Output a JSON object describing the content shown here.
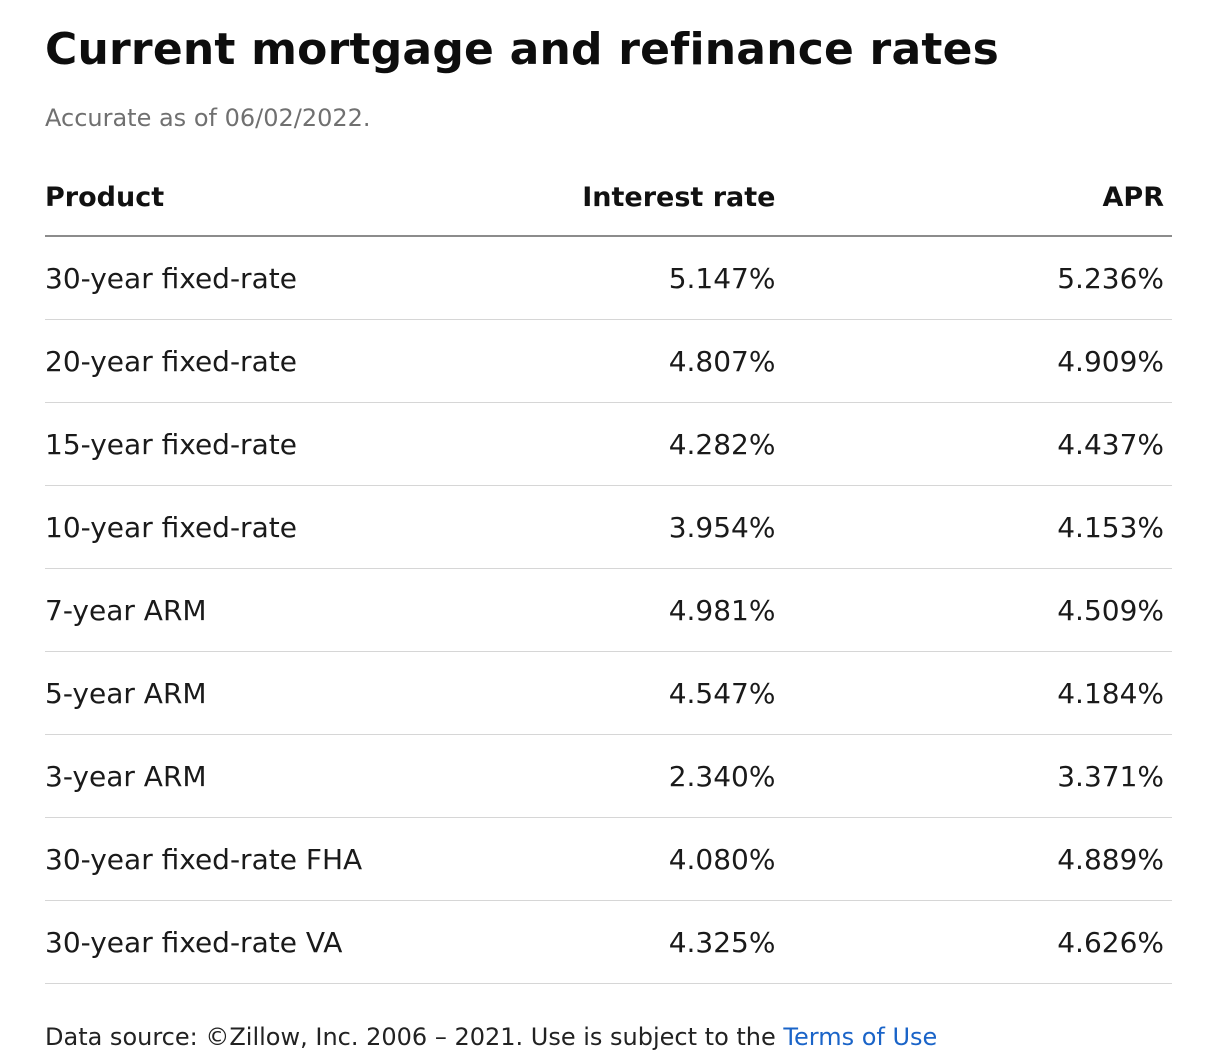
{
  "header": {
    "title": "Current mortgage and refinance rates",
    "subtitle": "Accurate as of 06/02/2022."
  },
  "table": {
    "columns": {
      "product": "Product",
      "interest_rate": "Interest rate",
      "apr": "APR"
    },
    "rows": [
      {
        "product": "30-year fixed-rate",
        "interest_rate": "5.147%",
        "apr": "5.236%"
      },
      {
        "product": "20-year fixed-rate",
        "interest_rate": "4.807%",
        "apr": "4.909%"
      },
      {
        "product": "15-year fixed-rate",
        "interest_rate": "4.282%",
        "apr": "4.437%"
      },
      {
        "product": "10-year fixed-rate",
        "interest_rate": "3.954%",
        "apr": "4.153%"
      },
      {
        "product": "7-year ARM",
        "interest_rate": "4.981%",
        "apr": "4.509%"
      },
      {
        "product": "5-year ARM",
        "interest_rate": "4.547%",
        "apr": "4.184%"
      },
      {
        "product": "3-year ARM",
        "interest_rate": "2.340%",
        "apr": "3.371%"
      },
      {
        "product": "30-year fixed-rate FHA",
        "interest_rate": "4.080%",
        "apr": "4.889%"
      },
      {
        "product": "30-year fixed-rate VA",
        "interest_rate": "4.325%",
        "apr": "4.626%"
      }
    ]
  },
  "footer": {
    "source_text": "Data source: ©Zillow, Inc. 2006 – 2021. Use is subject to the ",
    "terms_link": "Terms of Use"
  },
  "colors": {
    "link": "#1a64c8",
    "subtitle": "#707070",
    "header_rule": "#8c8c8c",
    "row_rule": "#d6d6d6"
  }
}
